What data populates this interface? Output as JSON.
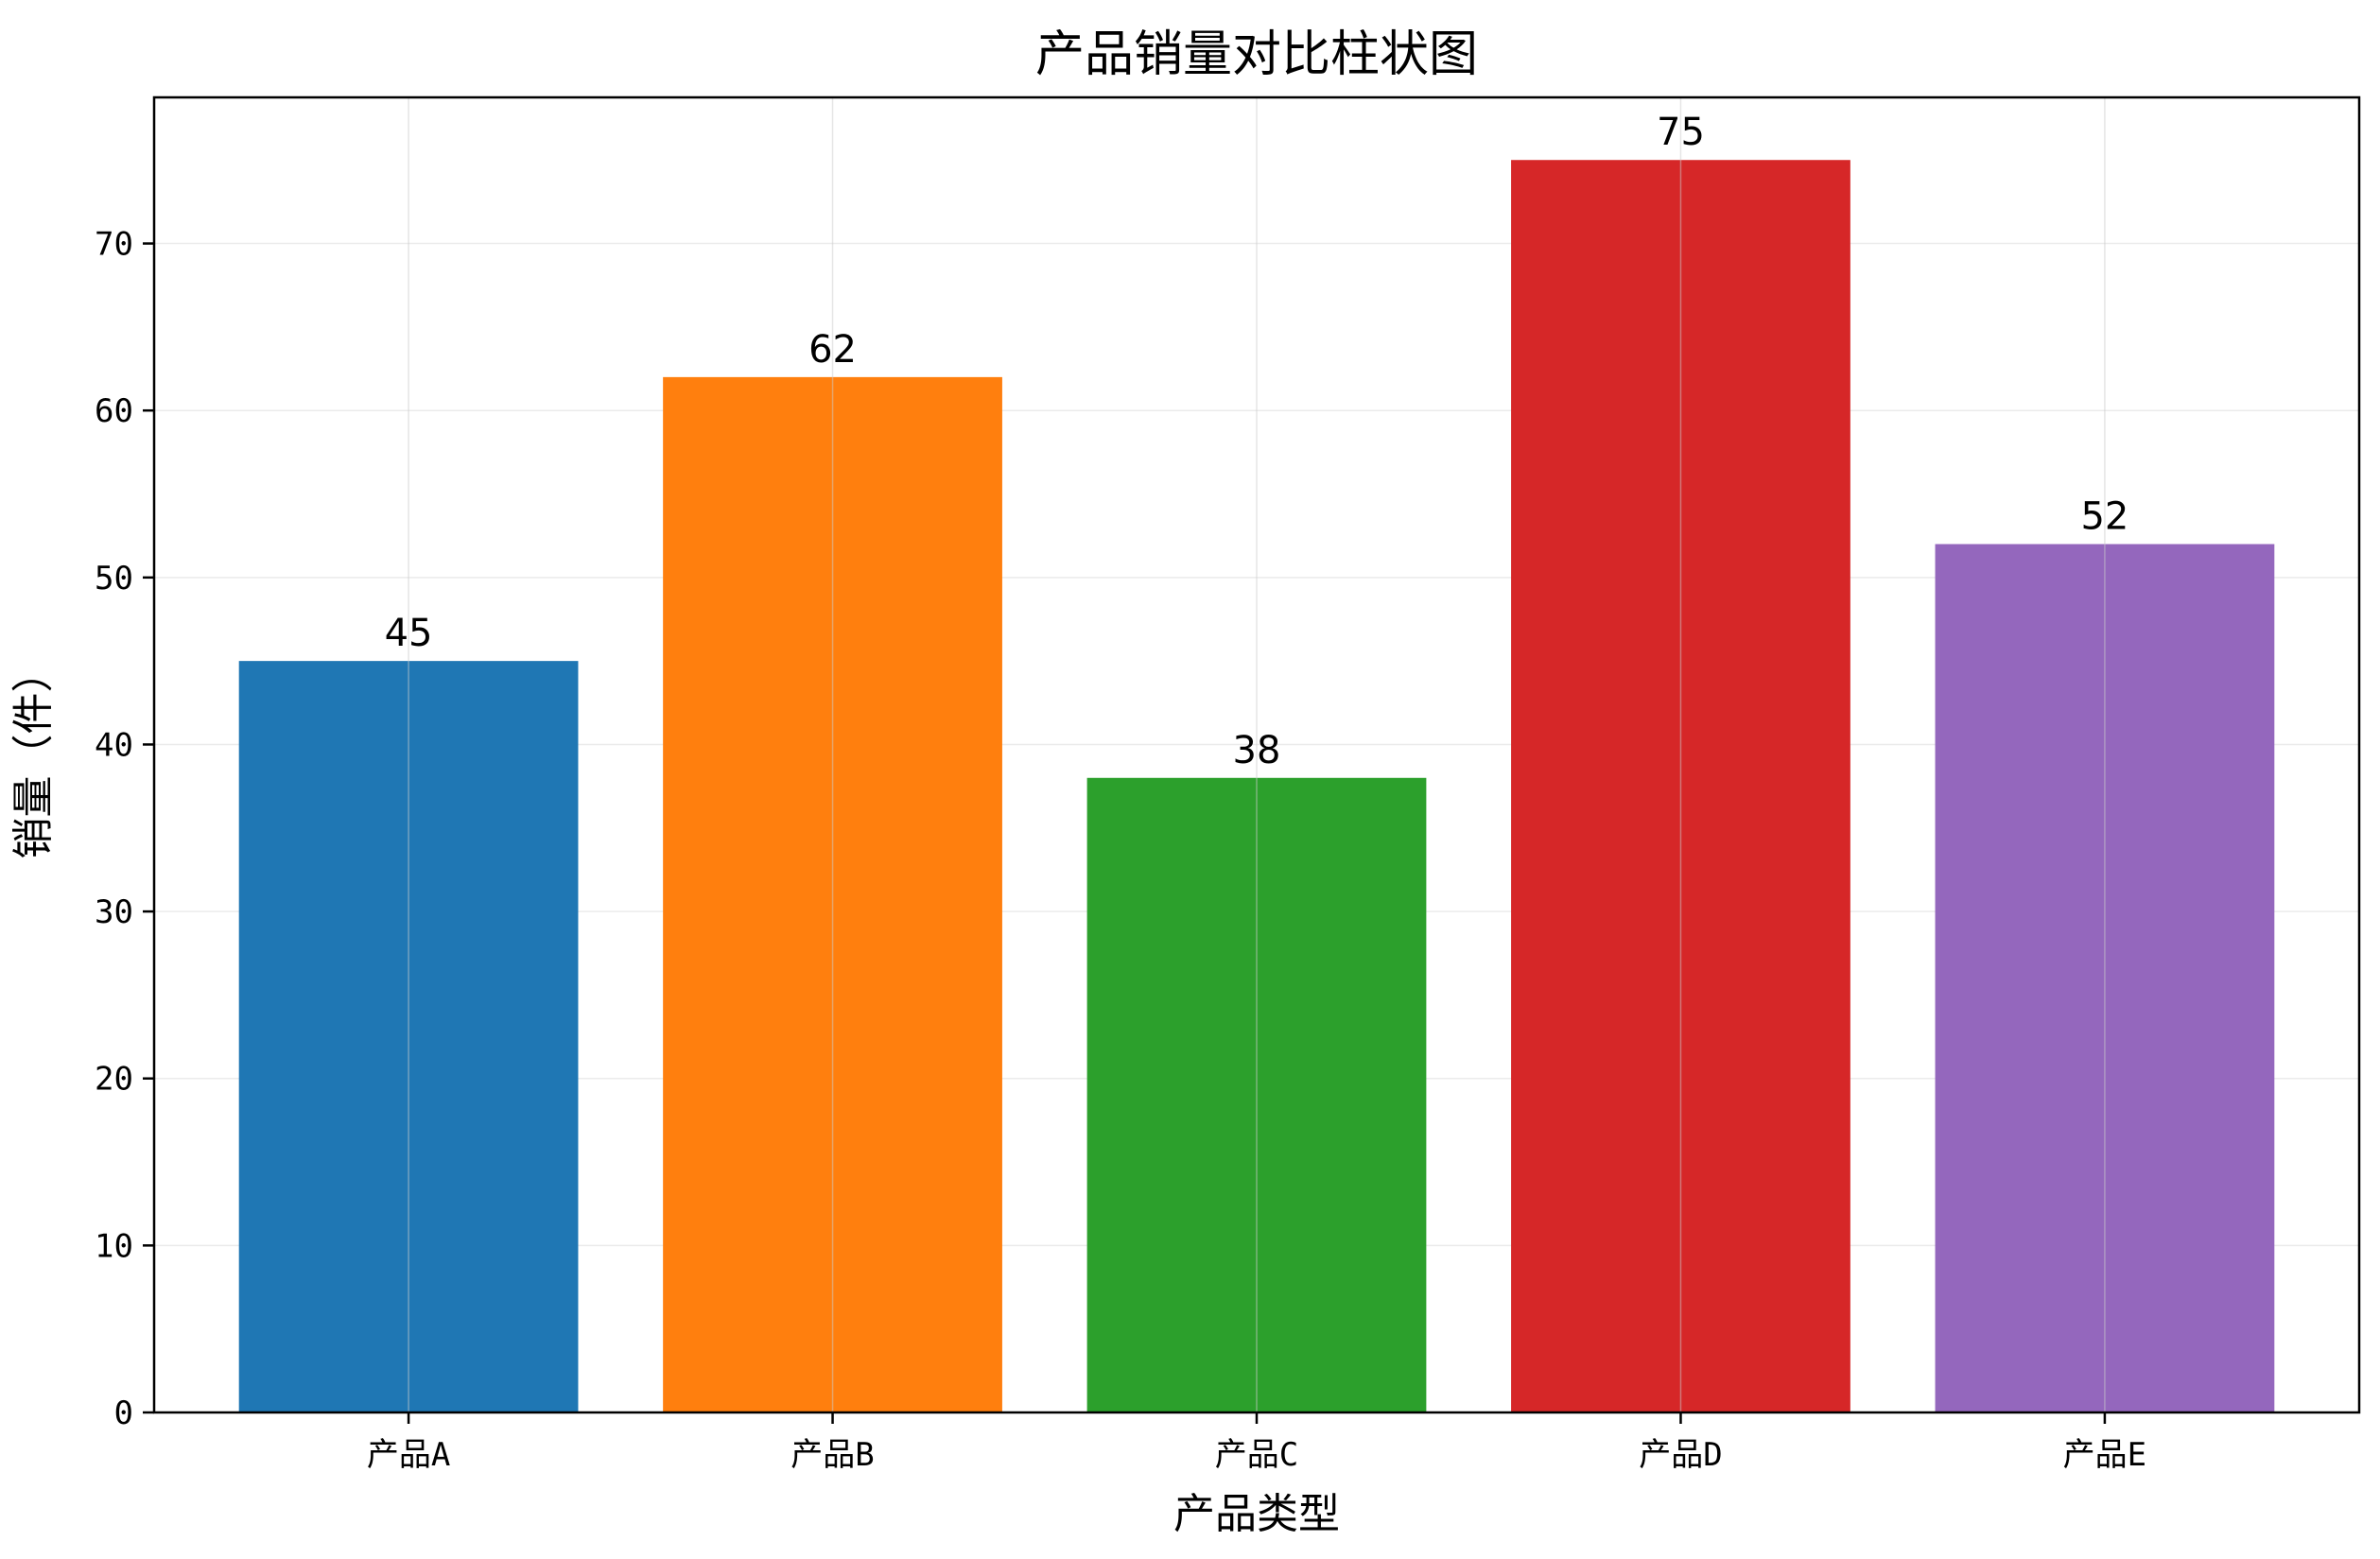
{
  "chart_data": {
    "type": "bar",
    "title": "产品销量对比柱状图",
    "xlabel": "产品类型",
    "ylabel": "销量（件）",
    "categories": [
      "产品A",
      "产品B",
      "产品C",
      "产品D",
      "产品E"
    ],
    "values": [
      45,
      62,
      38,
      75,
      52
    ],
    "data_labels": [
      "45",
      "62",
      "38",
      "75",
      "52"
    ],
    "colors": [
      "#1f77b4",
      "#ff7f0e",
      "#2ca02c",
      "#d62728",
      "#9467bd"
    ],
    "ylim": [
      0,
      78.75
    ],
    "yticks": [
      0,
      10,
      20,
      30,
      40,
      50,
      60,
      70
    ],
    "ytick_labels": [
      "0",
      "10",
      "20",
      "30",
      "40",
      "50",
      "60",
      "70"
    ],
    "grid": true,
    "legend": "none"
  }
}
